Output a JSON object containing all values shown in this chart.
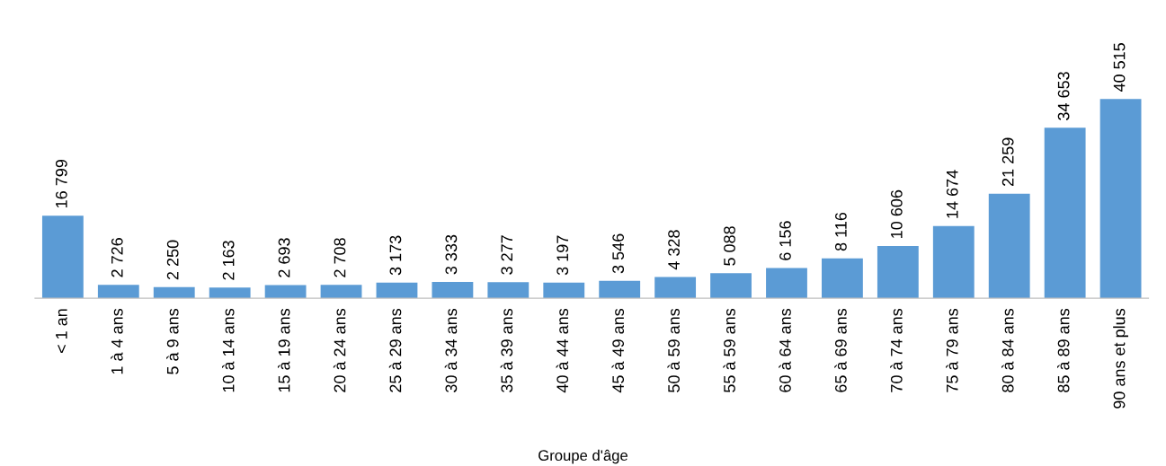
{
  "chart_data": {
    "type": "bar",
    "xlabel": "Groupe d'âge",
    "categories": [
      "< 1 an",
      "1 à 4 ans",
      "5 à 9 ans",
      "10 à 14 ans",
      "15 à 19 ans",
      "20 à 24 ans",
      "25 à 29 ans",
      "30 à 34 ans",
      "35 à 39 ans",
      "40 à 44 ans",
      "45 à 49 ans",
      "50 à 59 ans",
      "55 à 59 ans",
      "60 à 64 ans",
      "65 à 69 ans",
      "70 à 74 ans",
      "75 à 79 ans",
      "80 à 84 ans",
      "85 à 89 ans",
      "90 ans et plus"
    ],
    "values": [
      16799,
      2726,
      2250,
      2163,
      2693,
      2708,
      3173,
      3333,
      3277,
      3197,
      3546,
      4328,
      5088,
      6156,
      8116,
      10606,
      14674,
      21259,
      34653,
      40515
    ],
    "value_labels": [
      "16 799",
      "2 726",
      "2 250",
      "2 163",
      "2 693",
      "2 708",
      "3 173",
      "3 333",
      "3 277",
      "3 197",
      "3 546",
      "4 328",
      "5 088",
      "6 156",
      "8 116",
      "10 606",
      "14 674",
      "21 259",
      "34 653",
      "40 515"
    ],
    "color": "#5b9bd5",
    "grid": false,
    "legend": false
  }
}
